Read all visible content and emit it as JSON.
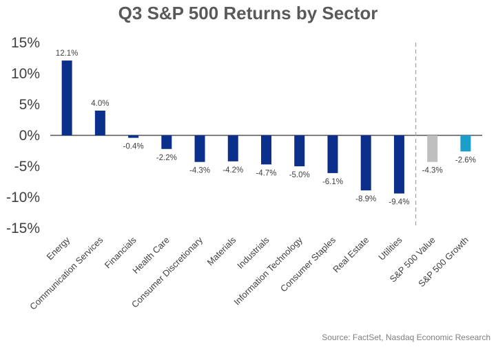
{
  "chart_data": {
    "type": "bar",
    "title": "Q3 S&P 500 Returns by Sector",
    "categories": [
      "Energy",
      "Communication Services",
      "Financials",
      "Health Care",
      "Consumer Discretionary",
      "Materials",
      "Industrials",
      "Information Technology",
      "Consumer Staples",
      "Real Estate",
      "Utilities",
      "S&P 500 Value",
      "S&P 500 Growth"
    ],
    "values": [
      12.1,
      4.0,
      -0.4,
      -2.2,
      -4.3,
      -4.2,
      -4.7,
      -5.0,
      -6.1,
      -8.9,
      -9.4,
      -4.3,
      -2.6
    ],
    "data_labels": [
      "12.1%",
      "4.0%",
      "-0.4%",
      "-2.2%",
      "-4.3%",
      "-4.2%",
      "-4.7%",
      "-5.0%",
      "-6.1%",
      "-8.9%",
      "-9.4%",
      "-4.3%",
      "-2.6%"
    ],
    "bar_colors": [
      "#0d2f8c",
      "#0d2f8c",
      "#0d2f8c",
      "#0d2f8c",
      "#0d2f8c",
      "#0d2f8c",
      "#0d2f8c",
      "#0d2f8c",
      "#0d2f8c",
      "#0d2f8c",
      "#0d2f8c",
      "#bfbfbf",
      "#1aa0c8"
    ],
    "yticks": [
      "15%",
      "10%",
      "5%",
      "0%",
      "-5%",
      "-10%",
      "-15%"
    ],
    "ytick_values": [
      15,
      10,
      5,
      0,
      -5,
      -10,
      -15
    ],
    "ylim": [
      -15,
      15
    ],
    "xlabel": "",
    "ylabel": "",
    "grid": false,
    "separator": "dashed line between Utilities and S&P 500 Value",
    "source": "Source: FactSet, Nasdaq Economic Research"
  }
}
